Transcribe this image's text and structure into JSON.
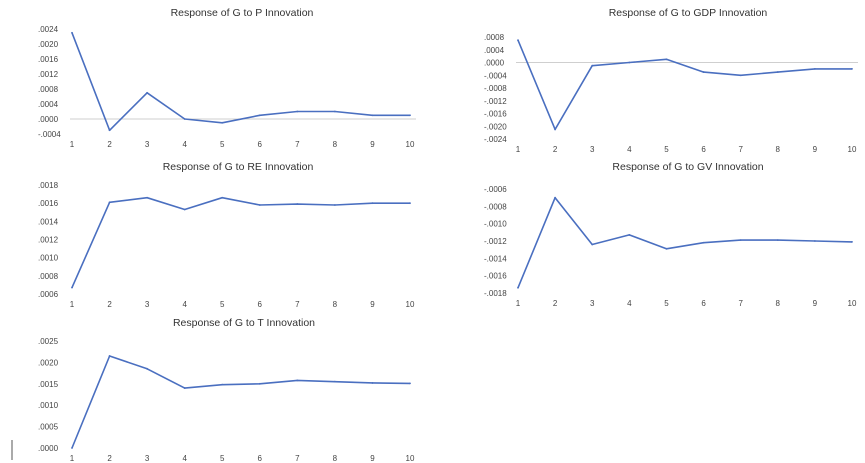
{
  "chart_data": [
    {
      "type": "line",
      "title": "Response of G to P Innovation",
      "xlabel": "",
      "ylabel": "",
      "categories": [
        "1",
        "2",
        "3",
        "4",
        "5",
        "6",
        "7",
        "8",
        "9",
        "10"
      ],
      "series": [
        {
          "values": [
            0.0023,
            -0.0003,
            0.0007,
            0.0,
            -0.0001,
            0.0001,
            0.0002,
            0.0002,
            0.0001,
            0.0001
          ]
        }
      ],
      "ylim": [
        -0.0004,
        0.0024
      ],
      "yticks": [
        ".0024",
        ".0020",
        ".0016",
        ".0012",
        ".0008",
        ".0004",
        ".0000",
        "-.0004"
      ],
      "zero_line": true,
      "grid": false,
      "color": "#4a6fc0"
    },
    {
      "type": "line",
      "title": "Response of G to GDP Innovation",
      "xlabel": "",
      "ylabel": "",
      "categories": [
        "1",
        "2",
        "3",
        "4",
        "5",
        "6",
        "7",
        "8",
        "9",
        "10"
      ],
      "series": [
        {
          "values": [
            0.0007,
            -0.0021,
            -0.0001,
            0.0,
            0.0001,
            -0.0003,
            -0.0004,
            -0.0003,
            -0.0002,
            -0.0002
          ]
        }
      ],
      "ylim": [
        -0.0024,
        0.0008
      ],
      "yticks": [
        ".0008",
        ".0004",
        ".0000",
        "-.0004",
        "-.0008",
        "-.0012",
        "-.0016",
        "-.0020",
        "-.0024"
      ],
      "zero_line": true,
      "grid": false,
      "color": "#4a6fc0"
    },
    {
      "type": "line",
      "title": "Response of G to RE Innovation",
      "xlabel": "",
      "ylabel": "",
      "categories": [
        "1",
        "2",
        "3",
        "4",
        "5",
        "6",
        "7",
        "8",
        "9",
        "10"
      ],
      "series": [
        {
          "values": [
            0.00067,
            0.00161,
            0.00166,
            0.00153,
            0.00166,
            0.00158,
            0.00159,
            0.00158,
            0.0016,
            0.0016
          ]
        }
      ],
      "ylim": [
        0.0006,
        0.0018
      ],
      "yticks": [
        ".0018",
        ".0016",
        ".0014",
        ".0012",
        ".0010",
        ".0008",
        ".0006"
      ],
      "zero_line": false,
      "grid": false,
      "color": "#4a6fc0"
    },
    {
      "type": "line",
      "title": "Response of G to GV Innovation",
      "xlabel": "",
      "ylabel": "",
      "categories": [
        "1",
        "2",
        "3",
        "4",
        "5",
        "6",
        "7",
        "8",
        "9",
        "10"
      ],
      "series": [
        {
          "values": [
            -0.00174,
            -0.0007,
            -0.00124,
            -0.00113,
            -0.00129,
            -0.00122,
            -0.00119,
            -0.00119,
            -0.0012,
            -0.00121
          ]
        }
      ],
      "ylim": [
        -0.0018,
        -0.0006
      ],
      "yticks": [
        "-.0006",
        "-.0008",
        "-.0010",
        "-.0012",
        "-.0014",
        "-.0016",
        "-.0018"
      ],
      "zero_line": false,
      "grid": false,
      "color": "#4a6fc0"
    },
    {
      "type": "line",
      "title": "Response of G to T Innovation",
      "xlabel": "",
      "ylabel": "",
      "categories": [
        "1",
        "2",
        "3",
        "4",
        "5",
        "6",
        "7",
        "8",
        "9",
        "10"
      ],
      "series": [
        {
          "values": [
            0.0,
            0.00215,
            0.00185,
            0.0014,
            0.00148,
            0.0015,
            0.00158,
            0.00155,
            0.00152,
            0.00151
          ]
        }
      ],
      "ylim": [
        0.0,
        0.0025
      ],
      "yticks": [
        ".0025",
        ".0020",
        ".0015",
        ".0010",
        ".0005",
        ".0000"
      ],
      "zero_line": false,
      "grid": false,
      "color": "#4a6fc0"
    }
  ]
}
